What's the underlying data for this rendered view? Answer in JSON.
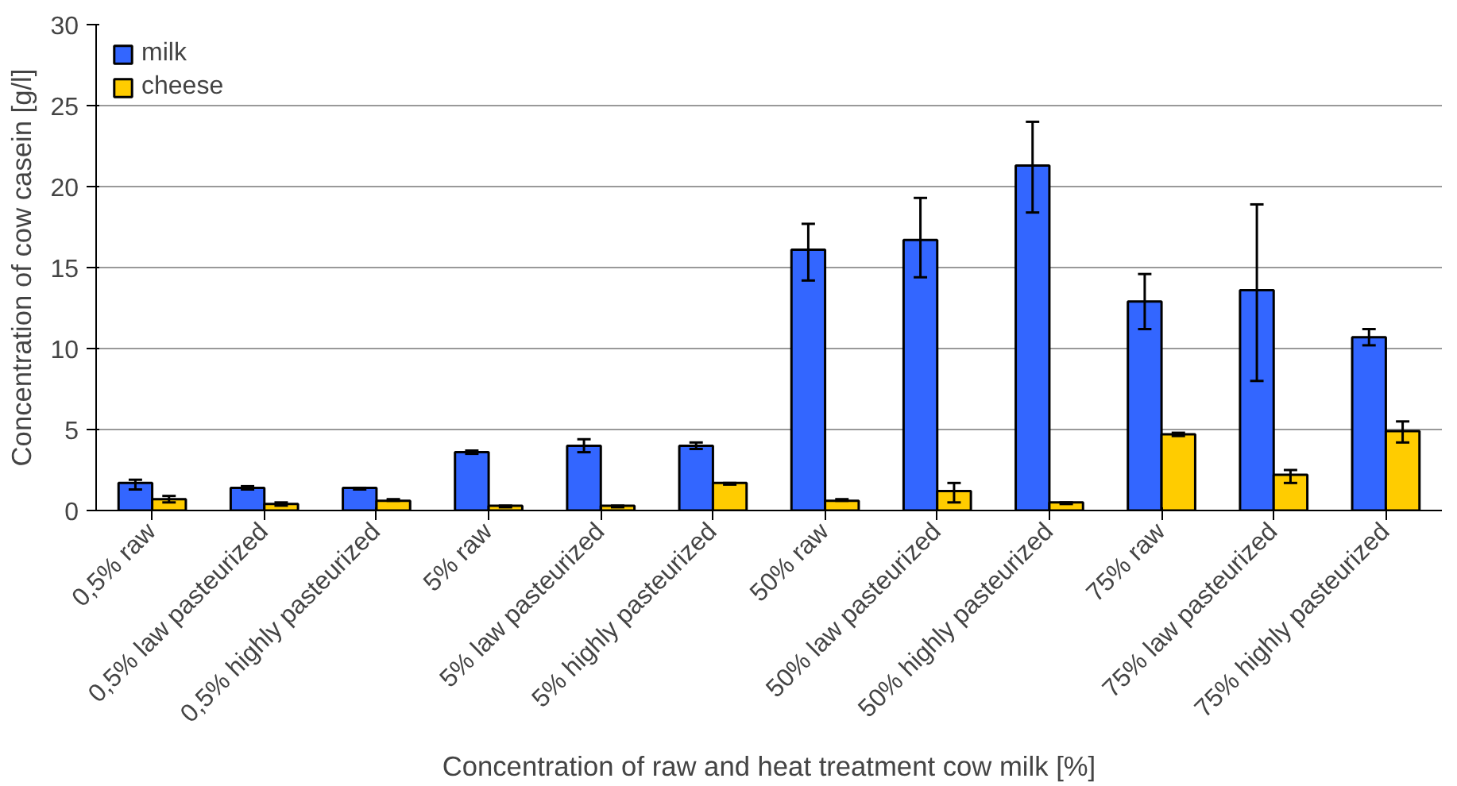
{
  "chart_data": {
    "type": "bar",
    "xlabel": "Concentration of raw and heat treatment cow milk [%]",
    "ylabel": "Concentration of cow casein [g/l]",
    "categories": [
      "0,5% raw",
      "0,5% law pasteurized",
      "0,5% highly pasteurized",
      "5% raw",
      "5% law pasteurized",
      "5% highly pasteurized",
      "50% raw",
      "50% law pasteurized",
      "50% highly pasteurized",
      "75% raw",
      "75% law pasteurized",
      "75% highly pasteurized"
    ],
    "series": [
      {
        "name": "milk",
        "color": "#3366ff",
        "values": [
          1.7,
          1.4,
          1.4,
          3.6,
          4.0,
          4.0,
          16.1,
          16.7,
          21.3,
          12.9,
          13.6,
          10.7
        ],
        "errors": [
          [
            1.3,
            1.9
          ],
          [
            1.3,
            1.5
          ],
          [
            1.3,
            1.4
          ],
          [
            3.5,
            3.7
          ],
          [
            3.6,
            4.4
          ],
          [
            3.8,
            4.2
          ],
          [
            14.2,
            17.7
          ],
          [
            14.4,
            19.3
          ],
          [
            18.4,
            24.0
          ],
          [
            11.2,
            14.6
          ],
          [
            8.0,
            18.9
          ],
          [
            10.2,
            11.2
          ]
        ]
      },
      {
        "name": "cheese",
        "color": "#ffcc00",
        "values": [
          0.7,
          0.4,
          0.6,
          0.3,
          0.3,
          1.7,
          0.6,
          1.2,
          0.5,
          4.7,
          2.2,
          4.9
        ],
        "errors": [
          [
            0.5,
            0.9
          ],
          [
            0.3,
            0.5
          ],
          [
            0.6,
            0.7
          ],
          [
            0.2,
            0.3
          ],
          [
            0.2,
            0.3
          ],
          [
            1.6,
            1.7
          ],
          [
            0.6,
            0.7
          ],
          [
            0.5,
            1.7
          ],
          [
            0.4,
            0.5
          ],
          [
            4.6,
            4.8
          ],
          [
            1.7,
            2.5
          ],
          [
            4.2,
            5.5
          ]
        ]
      }
    ],
    "ylim": [
      0,
      30
    ],
    "yticks": [
      0,
      5,
      10,
      15,
      20,
      25,
      30
    ],
    "grid": "y",
    "legend": "top left"
  }
}
